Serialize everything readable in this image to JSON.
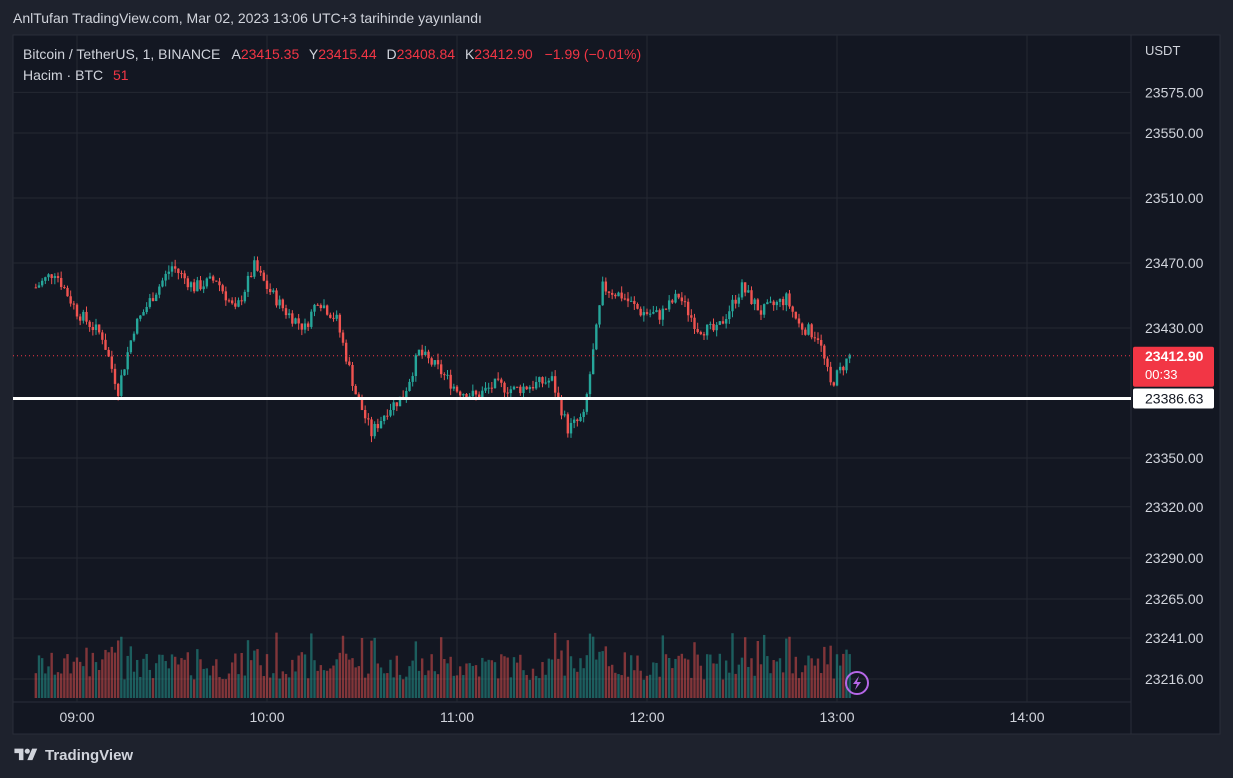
{
  "header": {
    "published": "AnlTufan TradingView.com, Mar 02, 2023 13:06 UTC+3 tarihinde yayınlandı"
  },
  "legend": {
    "symbol": "Bitcoin / TetherUS, 1, BINANCE",
    "open_label": "A",
    "open": "23415.35",
    "high_label": "Y",
    "high": "23415.44",
    "low_label": "D",
    "low": "23408.84",
    "close_label": "K",
    "close": "23412.90",
    "change": "−1.99 (−0.01%)",
    "volume_label": "Hacim · BTC",
    "volume": "51"
  },
  "colors": {
    "background": "#1e222d",
    "plot_background": "#131722",
    "up": "#26a69a",
    "down": "#ef5350",
    "up_volume": "#26a69a",
    "down_volume": "#ef5350",
    "text": "#d1d4dc",
    "grid": "#242833",
    "price_label": "#f23645",
    "alert_icon": "#b667e7"
  },
  "brand": {
    "name": "TradingView"
  },
  "chart_data": {
    "type": "candlestick",
    "interval": "1m",
    "currency": "USDT",
    "y_ticks": [
      "23575.00",
      "23550.00",
      "23510.00",
      "23470.00",
      "23430.00",
      "23412.90",
      "23386.63",
      "23350.00",
      "23320.00",
      "23290.00",
      "23265.00",
      "23241.00",
      "23216.00"
    ],
    "x_ticks": [
      "09:00",
      "10:00",
      "11:00",
      "12:00",
      "13:00",
      "14:00"
    ],
    "current_price": "23412.90",
    "countdown": "00:33",
    "support_level": "23386.63",
    "approx_close_path": [
      {
        "time": "08:47",
        "price": 23455
      },
      {
        "time": "08:53",
        "price": 23465
      },
      {
        "time": "09:00",
        "price": 23440
      },
      {
        "time": "09:08",
        "price": 23425
      },
      {
        "time": "09:13",
        "price": 23392
      },
      {
        "time": "09:18",
        "price": 23430
      },
      {
        "time": "09:24",
        "price": 23450
      },
      {
        "time": "09:30",
        "price": 23468
      },
      {
        "time": "09:37",
        "price": 23455
      },
      {
        "time": "09:44",
        "price": 23460
      },
      {
        "time": "09:50",
        "price": 23440
      },
      {
        "time": "09:56",
        "price": 23468
      },
      {
        "time": "10:00",
        "price": 23455
      },
      {
        "time": "10:06",
        "price": 23440
      },
      {
        "time": "10:12",
        "price": 23430
      },
      {
        "time": "10:16",
        "price": 23448
      },
      {
        "time": "10:22",
        "price": 23435
      },
      {
        "time": "10:28",
        "price": 23390
      },
      {
        "time": "10:33",
        "price": 23365
      },
      {
        "time": "10:38",
        "price": 23380
      },
      {
        "time": "10:43",
        "price": 23388
      },
      {
        "time": "10:48",
        "price": 23415
      },
      {
        "time": "10:54",
        "price": 23405
      },
      {
        "time": "11:00",
        "price": 23392
      },
      {
        "time": "11:06",
        "price": 23388
      },
      {
        "time": "11:12",
        "price": 23395
      },
      {
        "time": "11:18",
        "price": 23392
      },
      {
        "time": "11:24",
        "price": 23395
      },
      {
        "time": "11:30",
        "price": 23398
      },
      {
        "time": "11:35",
        "price": 23368
      },
      {
        "time": "11:40",
        "price": 23375
      },
      {
        "time": "11:43",
        "price": 23415
      },
      {
        "time": "11:46",
        "price": 23455
      },
      {
        "time": "11:52",
        "price": 23450
      },
      {
        "time": "11:58",
        "price": 23440
      },
      {
        "time": "12:04",
        "price": 23438
      },
      {
        "time": "12:10",
        "price": 23450
      },
      {
        "time": "12:16",
        "price": 23430
      },
      {
        "time": "12:22",
        "price": 23428
      },
      {
        "time": "12:30",
        "price": 23455
      },
      {
        "time": "12:36",
        "price": 23440
      },
      {
        "time": "12:44",
        "price": 23448
      },
      {
        "time": "12:48",
        "price": 23432
      },
      {
        "time": "12:54",
        "price": 23425
      },
      {
        "time": "12:58",
        "price": 23395
      },
      {
        "time": "13:04",
        "price": 23412.9
      }
    ]
  }
}
